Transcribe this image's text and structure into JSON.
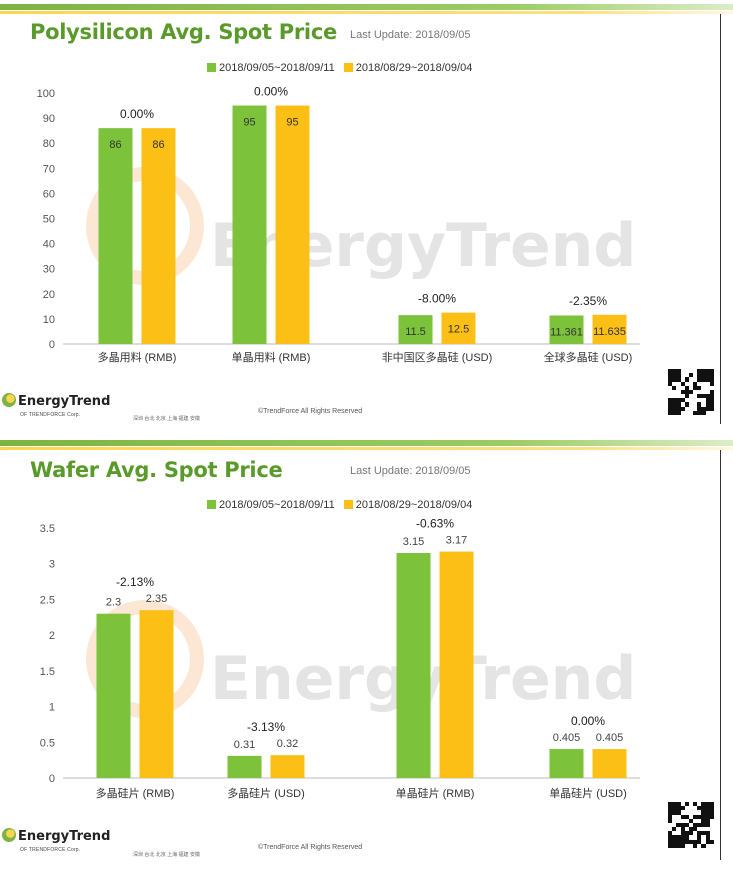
{
  "colors": {
    "current": "#7cc23a",
    "previous": "#fcbf16",
    "title": "#5a9a2a"
  },
  "footer": {
    "brand": "EnergyTrend",
    "brand_sub": "OF TRENDFORCE Corp.",
    "cities": "深圳  台北  北京  上海  福建  安徽",
    "copyright": "©TrendForce All Rights Reserved"
  },
  "watermark": "EnergyTrend",
  "panels": [
    {
      "title": "Polysilicon Avg. Spot Price",
      "last_update": "Last Update: 2018/09/05",
      "chart_data": {
        "type": "bar",
        "categories": [
          "多晶用料 (RMB)",
          "单晶用料 (RMB)",
          "非中国区多晶硅 (USD)",
          "全球多晶硅 (USD)"
        ],
        "series": [
          {
            "name": "2018/09/05~2018/09/11",
            "values": [
              86,
              95,
              11.5,
              11.361
            ]
          },
          {
            "name": "2018/08/29~2018/09/04",
            "values": [
              86,
              95,
              12.5,
              11.635
            ]
          }
        ],
        "value_labels": [
          [
            "86",
            "95",
            "11.5",
            "11.361"
          ],
          [
            "86",
            "95",
            "12.5",
            "11.635"
          ]
        ],
        "change_labels": [
          "0.00%",
          "0.00%",
          "-8.00%",
          "-2.35%"
        ],
        "ylim": [
          0,
          100
        ],
        "yticks": [
          "0",
          "10",
          "20",
          "30",
          "40",
          "50",
          "60",
          "70",
          "80",
          "90",
          "100"
        ],
        "labels_inside": true,
        "grid": false
      }
    },
    {
      "title": "Wafer Avg. Spot Price",
      "last_update": "Last Update: 2018/09/05",
      "chart_data": {
        "type": "bar",
        "categories": [
          "多晶硅片 (RMB)",
          "多晶硅片 (USD)",
          "单晶硅片 (RMB)",
          "单晶硅片 (USD)"
        ],
        "series": [
          {
            "name": "2018/09/05~2018/09/11",
            "values": [
              2.3,
              0.31,
              3.15,
              0.405
            ]
          },
          {
            "name": "2018/08/29~2018/09/04",
            "values": [
              2.35,
              0.32,
              3.17,
              0.405
            ]
          }
        ],
        "value_labels": [
          [
            "2.3",
            "0.31",
            "3.15",
            "0.405"
          ],
          [
            "2.35",
            "0.32",
            "3.17",
            "0.405"
          ]
        ],
        "change_labels": [
          "-2.13%",
          "-3.13%",
          "-0.63%",
          "0.00%"
        ],
        "ylim": [
          0,
          3.5
        ],
        "yticks": [
          "0",
          "0.5",
          "1",
          "1.5",
          "2",
          "2.5",
          "3",
          "3.5"
        ],
        "labels_inside": false,
        "grid": false
      }
    }
  ]
}
